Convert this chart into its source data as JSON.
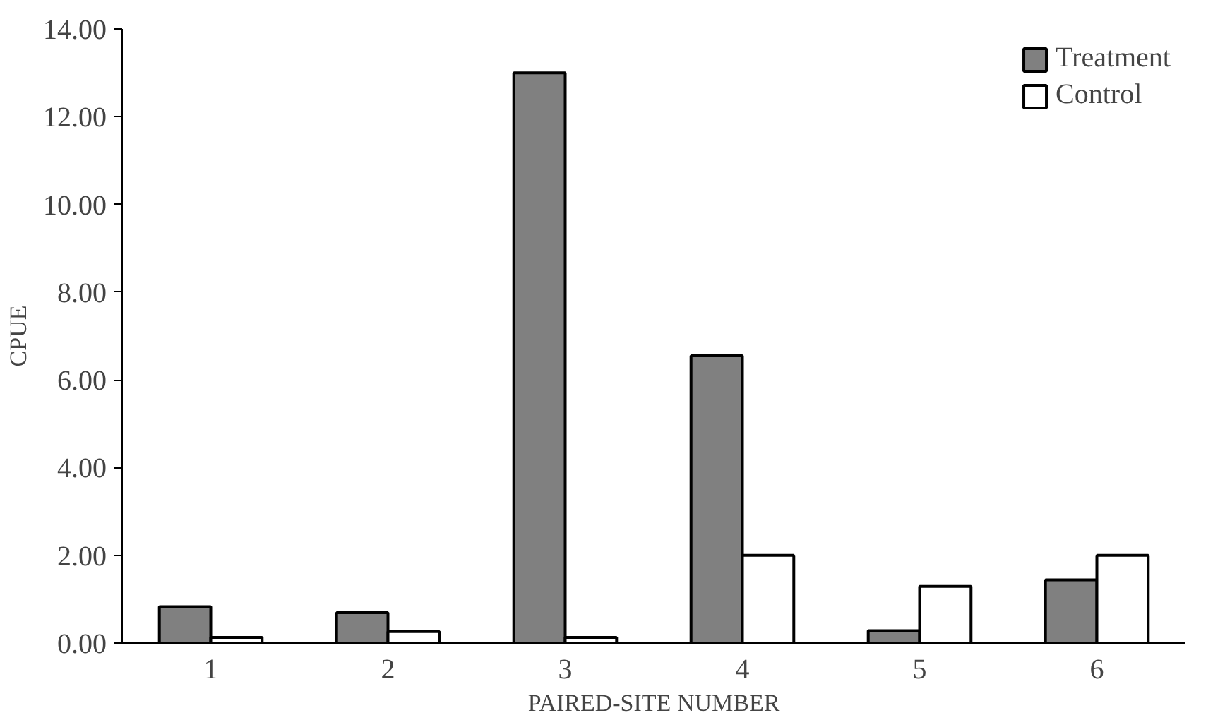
{
  "chart_data": {
    "type": "bar",
    "xlabel": "PAIRED-SITE NUMBER",
    "ylabel": "CPUE",
    "categories": [
      "1",
      "2",
      "3",
      "4",
      "5",
      "6"
    ],
    "series": [
      {
        "name": "Treatment",
        "color": "#808080",
        "values": [
          0.83,
          0.69,
          13.0,
          6.55,
          0.28,
          1.44
        ]
      },
      {
        "name": "Control",
        "color": "#ffffff",
        "values": [
          0.13,
          0.26,
          0.13,
          2.0,
          1.29,
          2.0
        ]
      }
    ],
    "ylim": [
      0,
      14
    ],
    "yticks": [
      {
        "value": 0,
        "label": "0.00"
      },
      {
        "value": 2,
        "label": "2.00"
      },
      {
        "value": 4,
        "label": "4.00"
      },
      {
        "value": 6,
        "label": "6.00"
      },
      {
        "value": 8,
        "label": "8.00"
      },
      {
        "value": 10,
        "label": "10.00"
      },
      {
        "value": 12,
        "label": "12.00"
      },
      {
        "value": 14,
        "label": "14.00"
      }
    ],
    "grid": false,
    "legend": "top right"
  }
}
